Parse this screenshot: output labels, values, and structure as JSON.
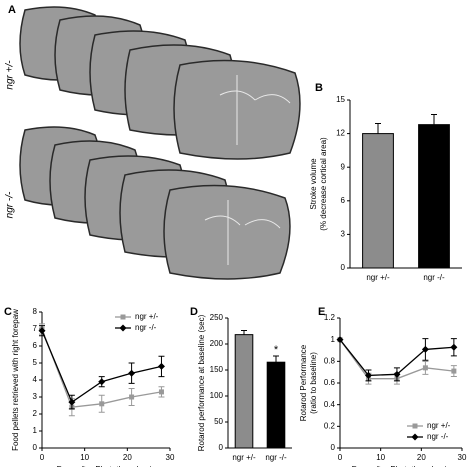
{
  "panel_a": {
    "label": "A",
    "rows": [
      "ngr +/-",
      "ngr -/-"
    ]
  },
  "chart_data": [
    {
      "type": "bar",
      "panel": "B",
      "ylabel": [
        "Stroke volume",
        "(% decrease cortical area)"
      ],
      "categories": [
        "ngr +/-",
        "ngr -/-"
      ],
      "values": [
        12,
        12.8
      ],
      "errors": [
        0.9,
        0.9
      ],
      "colors": [
        "#8c8c8c",
        "#000000"
      ],
      "ylim": [
        0,
        15
      ],
      "yticks": [
        0,
        3,
        6,
        9,
        12,
        15
      ]
    },
    {
      "type": "line",
      "panel": "C",
      "ylabel": [
        "Food pellets retrieved with right forepaw"
      ],
      "xlabel": "Days after Photothrombosis",
      "x": [
        0,
        7,
        14,
        21,
        28
      ],
      "xlim": [
        0,
        30
      ],
      "xticks": [
        0,
        10,
        20,
        30
      ],
      "ylim": [
        0,
        8
      ],
      "yticks": [
        0,
        1,
        2,
        3,
        4,
        5,
        6,
        7,
        8
      ],
      "legend": "top-right",
      "series": [
        {
          "name": "ngr +/-",
          "color": "#999999",
          "marker": "square",
          "values": [
            7,
            2.4,
            2.6,
            3.0,
            3.3
          ],
          "errors": [
            0.3,
            0.5,
            0.5,
            0.5,
            0.3
          ]
        },
        {
          "name": "ngr -/-",
          "color": "#000000",
          "marker": "diamond",
          "values": [
            6.9,
            2.7,
            3.9,
            4.4,
            4.8
          ],
          "errors": [
            0.3,
            0.4,
            0.3,
            0.6,
            0.6
          ]
        }
      ]
    },
    {
      "type": "bar",
      "panel": "D",
      "ylabel": [
        "Rotarod performance at baseline (sec)"
      ],
      "categories": [
        "ngr +/-",
        "ngr -/-"
      ],
      "values": [
        218,
        165
      ],
      "errors": [
        8,
        12
      ],
      "colors": [
        "#8c8c8c",
        "#000000"
      ],
      "ylim": [
        0,
        250
      ],
      "yticks": [
        0,
        50,
        100,
        150,
        200,
        250
      ],
      "annotation": "*"
    },
    {
      "type": "line",
      "panel": "E",
      "ylabel": [
        "Rotarod Performance",
        "(ratio to baseline)"
      ],
      "xlabel": "Days after Photothrombosis",
      "x": [
        0,
        7,
        14,
        21,
        28
      ],
      "xlim": [
        0,
        30
      ],
      "xticks": [
        0,
        10,
        20,
        30
      ],
      "ylim": [
        0,
        1.2
      ],
      "yticks": [
        0,
        0.2,
        0.4,
        0.6,
        0.8,
        1,
        1.2
      ],
      "legend": "bottom-right",
      "series": [
        {
          "name": "ngr +/-",
          "color": "#999999",
          "marker": "square",
          "values": [
            1,
            0.64,
            0.64,
            0.74,
            0.71
          ],
          "errors": [
            0,
            0.05,
            0.05,
            0.06,
            0.05
          ]
        },
        {
          "name": "ngr -/-",
          "color": "#000000",
          "marker": "diamond",
          "values": [
            1,
            0.67,
            0.68,
            0.91,
            0.93
          ],
          "errors": [
            0,
            0.05,
            0.06,
            0.1,
            0.08
          ]
        }
      ]
    }
  ]
}
